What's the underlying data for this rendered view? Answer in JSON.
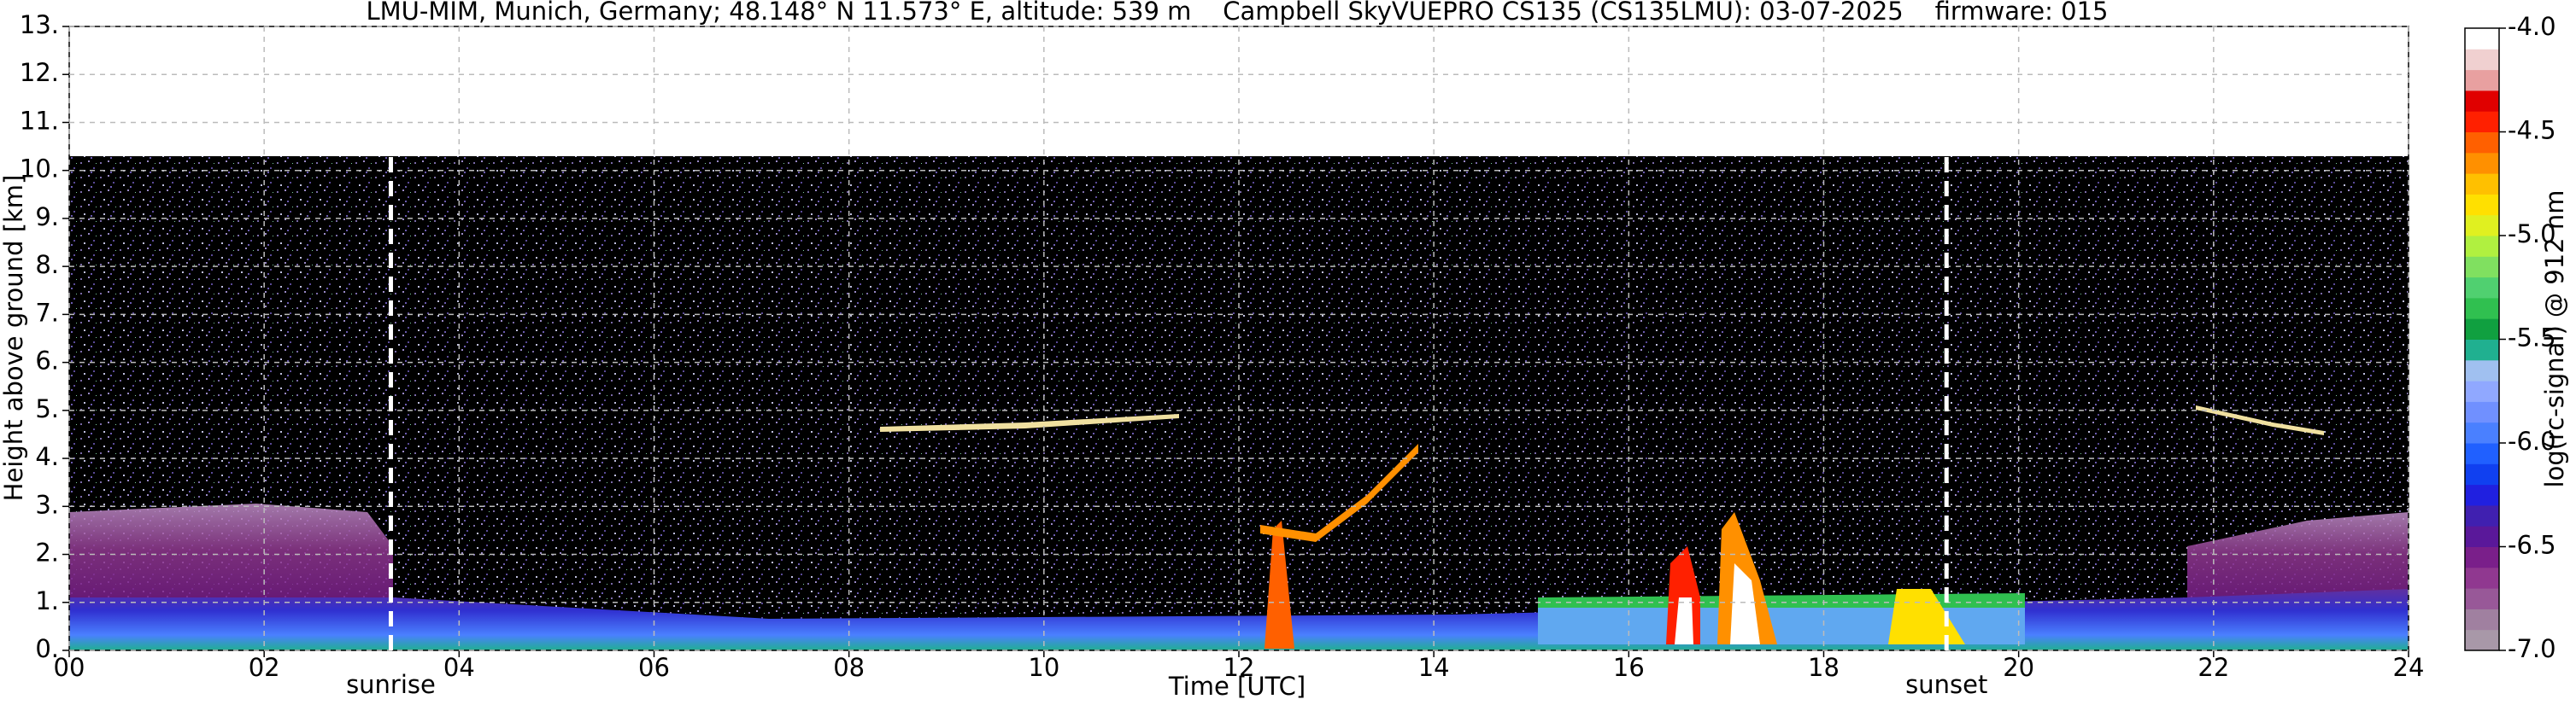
{
  "chart_data": {
    "type": "heatmap",
    "title": "LMU-MIM, Munich, Germany; 48.148° N 11.573° E, altitude: 539 m    Campbell SkyVUEPRO CS135 (CS135LMU): 03-07-2025    firmware: 015",
    "xlabel": "Time [UTC]",
    "ylabel": "Height above ground [km]",
    "xlim": [
      0,
      24
    ],
    "xticks": [
      {
        "value": 0,
        "label": "00"
      },
      {
        "value": 2,
        "label": "02"
      },
      {
        "value": 4,
        "label": "04"
      },
      {
        "value": 6,
        "label": "06"
      },
      {
        "value": 8,
        "label": "08"
      },
      10,
      12,
      14,
      16,
      18,
      20,
      22,
      24
    ],
    "ylim": [
      0,
      13
    ],
    "yticks": [
      {
        "value": 0,
        "label": "0."
      },
      {
        "value": 1,
        "label": "1."
      },
      {
        "value": 2,
        "label": "2."
      },
      {
        "value": 3,
        "label": "3."
      },
      {
        "value": 4,
        "label": "4."
      },
      {
        "value": 5,
        "label": "5."
      },
      {
        "value": 6,
        "label": "6."
      },
      {
        "value": 7,
        "label": "7."
      },
      {
        "value": 8,
        "label": "8."
      },
      {
        "value": 9,
        "label": "9."
      },
      {
        "value": 10,
        "label": "10."
      },
      {
        "value": 11,
        "label": "11."
      },
      {
        "value": 12,
        "label": "12."
      },
      {
        "value": 13,
        "label": "13."
      }
    ],
    "grid": true,
    "annotations": [
      {
        "x": 3.3,
        "label": "sunrise"
      },
      {
        "x": 19.26,
        "label": "sunset"
      }
    ],
    "colorbar": {
      "label": "log(rc-signal) @ 912 nm",
      "clim": [
        -7.0,
        -4.0
      ],
      "ticks": [
        {
          "value": -7,
          "label": "-7.0"
        },
        -6.5,
        {
          "value": -6,
          "label": "-6.0"
        },
        -5.5,
        {
          "value": -5,
          "label": "-5.0"
        },
        -4.5,
        {
          "value": -4,
          "label": "-4.0"
        }
      ],
      "colors": [
        "#a898a8",
        "#a080a0",
        "#985898",
        "#903890",
        "#7a1f8a",
        "#5a189a",
        "#4020b0",
        "#2020e0",
        "#1040f0",
        "#2060ff",
        "#4a80ff",
        "#7090ff",
        "#90a8ff",
        "#a0c0f0",
        "#20b090",
        "#10a040",
        "#30c050",
        "#50d070",
        "#80e060",
        "#b0f040",
        "#e0f020",
        "#ffe000",
        "#ffc000",
        "#ff9000",
        "#ff6000",
        "#ff2000",
        "#e00000",
        "#e8a0a0",
        "#f0d0d0",
        "#ffffff"
      ]
    }
  }
}
